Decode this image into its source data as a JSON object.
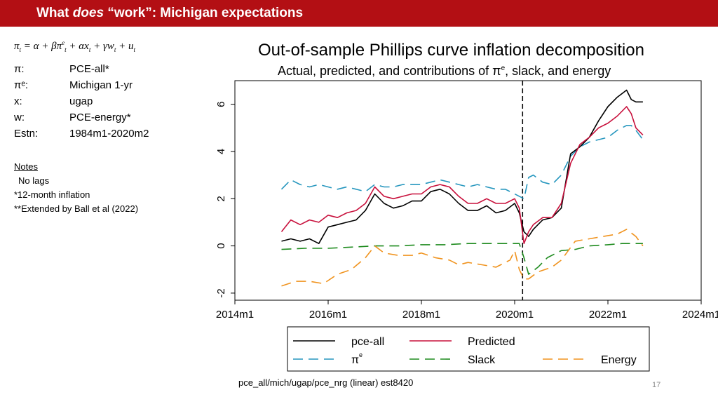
{
  "header": {
    "title_prefix": "What ",
    "title_emph": "does",
    "title_suffix": " “work”: Michigan expectations",
    "bg_color": "#b30f14"
  },
  "equation": {
    "pi": "π",
    "t": "t",
    "e": "e",
    "eq": " = α + β",
    "plus_alpha": " + α",
    "x": "x",
    "plus_gamma": " + γ",
    "w": "w",
    "plus": " + ",
    "u": "u"
  },
  "definitions": [
    {
      "key": "π:",
      "value": "PCE-all*"
    },
    {
      "key": "πᵉ:",
      "value": "Michigan 1-yr"
    },
    {
      "key": "x:",
      "value": "ugap"
    },
    {
      "key": "w:",
      "value": "PCE-energy*"
    },
    {
      "key": "Estn:",
      "value": "1984m1-2020m2"
    }
  ],
  "notes": {
    "heading": "Notes",
    "lines": [
      "No lags",
      "*12-month inflation",
      "**Extended by Ball et al (2022)"
    ]
  },
  "footer": {
    "note": "pce_all/mich/ugap/pce_nrg (linear) est8420",
    "page": "17"
  },
  "chart_data": {
    "type": "line",
    "title": "Out-of-sample Phillips curve inflation decomposition",
    "subtitle_pre": "Actual, predicted, and contributions of π",
    "subtitle_sup": "e",
    "subtitle_post": ", slack, and energy",
    "xlabel": "",
    "ylabel": "",
    "xlim": [
      2014.0,
      2024.0
    ],
    "ylim": [
      -2.3,
      7.0
    ],
    "xticks": [
      2014,
      2016,
      2018,
      2020,
      2022,
      2024
    ],
    "xtick_labels": [
      "2014m1",
      "2016m1",
      "2018m1",
      "2020m1",
      "2022m1",
      "2024m1"
    ],
    "yticks": [
      -2,
      0,
      2,
      4,
      6
    ],
    "ytick_labels": [
      "-2",
      "0",
      "2",
      "4",
      "6"
    ],
    "vline_x": 2020.17,
    "legend": {
      "placement": "bottom"
    },
    "series": [
      {
        "name": "pce-all",
        "color": "#000000",
        "dash": "solid",
        "legend_label": "pce-all",
        "legend_sup": "",
        "x": [
          2015.0,
          2015.2,
          2015.4,
          2015.6,
          2015.8,
          2016.0,
          2016.2,
          2016.4,
          2016.6,
          2016.8,
          2017.0,
          2017.2,
          2017.4,
          2017.6,
          2017.8,
          2018.0,
          2018.2,
          2018.4,
          2018.6,
          2018.8,
          2019.0,
          2019.2,
          2019.4,
          2019.6,
          2019.8,
          2020.0,
          2020.1,
          2020.2,
          2020.3,
          2020.4,
          2020.6,
          2020.8,
          2021.0,
          2021.2,
          2021.4,
          2021.6,
          2021.8,
          2022.0,
          2022.2,
          2022.4,
          2022.5,
          2022.6,
          2022.75
        ],
        "y": [
          0.2,
          0.3,
          0.2,
          0.3,
          0.1,
          0.8,
          0.9,
          1.0,
          1.1,
          1.5,
          2.2,
          1.8,
          1.6,
          1.7,
          1.9,
          1.9,
          2.3,
          2.4,
          2.2,
          1.8,
          1.5,
          1.5,
          1.7,
          1.4,
          1.5,
          1.8,
          1.4,
          0.6,
          0.4,
          0.7,
          1.1,
          1.2,
          1.6,
          3.9,
          4.2,
          4.6,
          5.3,
          5.9,
          6.3,
          6.6,
          6.2,
          6.1,
          6.1
        ]
      },
      {
        "name": "Predicted",
        "color": "#c8103c",
        "dash": "solid",
        "legend_label": "Predicted",
        "legend_sup": "",
        "x": [
          2015.0,
          2015.2,
          2015.4,
          2015.6,
          2015.8,
          2016.0,
          2016.2,
          2016.4,
          2016.6,
          2016.8,
          2017.0,
          2017.2,
          2017.4,
          2017.6,
          2017.8,
          2018.0,
          2018.2,
          2018.4,
          2018.6,
          2018.8,
          2019.0,
          2019.2,
          2019.4,
          2019.6,
          2019.8,
          2020.0,
          2020.1,
          2020.2,
          2020.3,
          2020.4,
          2020.6,
          2020.8,
          2021.0,
          2021.2,
          2021.4,
          2021.6,
          2021.8,
          2022.0,
          2022.2,
          2022.4,
          2022.5,
          2022.6,
          2022.75
        ],
        "y": [
          0.6,
          1.1,
          0.9,
          1.1,
          1.0,
          1.3,
          1.2,
          1.4,
          1.5,
          1.8,
          2.5,
          2.1,
          2.0,
          2.1,
          2.2,
          2.2,
          2.5,
          2.6,
          2.5,
          2.1,
          1.8,
          1.8,
          2.0,
          1.8,
          1.8,
          2.0,
          1.6,
          0.1,
          0.6,
          0.9,
          1.2,
          1.2,
          1.8,
          3.5,
          4.3,
          4.6,
          5.0,
          5.2,
          5.5,
          5.9,
          5.6,
          5.0,
          4.7
        ]
      },
      {
        "name": "pi_e",
        "color": "#2596be",
        "dash": "14,8",
        "legend_label": "π",
        "legend_sup": "e",
        "x": [
          2015.0,
          2015.2,
          2015.4,
          2015.6,
          2015.8,
          2016.0,
          2016.2,
          2016.4,
          2016.6,
          2016.8,
          2017.0,
          2017.2,
          2017.4,
          2017.6,
          2017.8,
          2018.0,
          2018.2,
          2018.4,
          2018.6,
          2018.8,
          2019.0,
          2019.2,
          2019.4,
          2019.6,
          2019.8,
          2020.0,
          2020.1,
          2020.2,
          2020.3,
          2020.4,
          2020.6,
          2020.8,
          2021.0,
          2021.2,
          2021.4,
          2021.6,
          2021.8,
          2022.0,
          2022.2,
          2022.4,
          2022.5,
          2022.6,
          2022.75
        ],
        "y": [
          2.4,
          2.8,
          2.6,
          2.5,
          2.6,
          2.5,
          2.4,
          2.5,
          2.4,
          2.3,
          2.6,
          2.5,
          2.5,
          2.6,
          2.6,
          2.6,
          2.7,
          2.8,
          2.7,
          2.6,
          2.5,
          2.6,
          2.5,
          2.4,
          2.4,
          2.2,
          2.1,
          2.0,
          2.9,
          3.0,
          2.7,
          2.6,
          3.0,
          3.8,
          4.2,
          4.4,
          4.5,
          4.6,
          4.9,
          5.1,
          5.1,
          4.9,
          4.5
        ]
      },
      {
        "name": "Slack",
        "color": "#1e8b1e",
        "dash": "14,8",
        "legend_label": "Slack",
        "legend_sup": "",
        "x": [
          2015.0,
          2015.5,
          2016.0,
          2016.5,
          2017.0,
          2017.5,
          2018.0,
          2018.5,
          2019.0,
          2019.5,
          2020.0,
          2020.1,
          2020.2,
          2020.3,
          2020.5,
          2020.7,
          2021.0,
          2021.3,
          2021.6,
          2022.0,
          2022.3,
          2022.75
        ],
        "y": [
          -0.15,
          -0.1,
          -0.1,
          -0.05,
          0.0,
          0.0,
          0.05,
          0.05,
          0.1,
          0.1,
          0.1,
          0.1,
          -0.5,
          -1.2,
          -0.9,
          -0.5,
          -0.2,
          -0.15,
          0.0,
          0.05,
          0.1,
          0.1
        ]
      },
      {
        "name": "Energy",
        "color": "#f0931e",
        "dash": "14,8",
        "legend_label": "Energy",
        "legend_sup": "",
        "x": [
          2015.0,
          2015.3,
          2015.6,
          2015.9,
          2016.2,
          2016.5,
          2016.8,
          2017.0,
          2017.2,
          2017.5,
          2017.8,
          2018.0,
          2018.3,
          2018.6,
          2018.8,
          2019.0,
          2019.3,
          2019.6,
          2019.9,
          2020.0,
          2020.1,
          2020.2,
          2020.3,
          2020.5,
          2020.8,
          2021.0,
          2021.3,
          2021.6,
          2021.9,
          2022.2,
          2022.4,
          2022.6,
          2022.75
        ],
        "y": [
          -1.7,
          -1.5,
          -1.5,
          -1.6,
          -1.2,
          -1.0,
          -0.5,
          0.0,
          -0.3,
          -0.4,
          -0.4,
          -0.3,
          -0.5,
          -0.6,
          -0.8,
          -0.7,
          -0.8,
          -0.9,
          -0.6,
          -0.2,
          -1.0,
          -1.4,
          -1.4,
          -1.1,
          -0.9,
          -0.6,
          0.2,
          0.3,
          0.4,
          0.5,
          0.7,
          0.4,
          0.0
        ]
      }
    ]
  }
}
